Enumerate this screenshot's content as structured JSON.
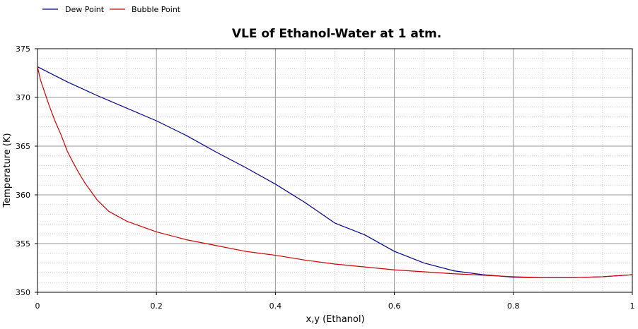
{
  "chart_data": {
    "type": "line",
    "title": "VLE of Ethanol-Water at 1 atm.",
    "xlabel": "x,y  (Ethanol)",
    "ylabel": "Temperature (K)",
    "xlim": [
      0,
      1
    ],
    "ylim": [
      350,
      375
    ],
    "x_ticks": [
      "0",
      "0.2",
      "0.4",
      "0.6",
      "0.8",
      "1"
    ],
    "y_ticks": [
      "350",
      "355",
      "360",
      "365",
      "370",
      "375"
    ],
    "x_tick_values": [
      0,
      0.2,
      0.4,
      0.6,
      0.8,
      1.0
    ],
    "y_tick_values": [
      350,
      355,
      360,
      365,
      370,
      375
    ],
    "x_minor_step": 0.05,
    "y_minor_step": 1,
    "grid": true,
    "legend_position": "top-left",
    "series": [
      {
        "name": "Dew Point",
        "color": "#00008b",
        "x": [
          0,
          0.05,
          0.1,
          0.15,
          0.2,
          0.25,
          0.3,
          0.35,
          0.4,
          0.45,
          0.5,
          0.55,
          0.6,
          0.65,
          0.7,
          0.75,
          0.8,
          0.85,
          0.9,
          0.95,
          1.0
        ],
        "y": [
          373.15,
          371.6,
          370.2,
          368.9,
          367.6,
          366.1,
          364.4,
          362.8,
          361.1,
          359.2,
          357.1,
          355.9,
          354.2,
          353.0,
          352.2,
          351.8,
          351.55,
          351.5,
          351.5,
          351.6,
          351.8
        ]
      },
      {
        "name": "Bubble Point",
        "color": "#cc0000",
        "x": [
          0,
          0.005,
          0.01,
          0.02,
          0.03,
          0.04,
          0.05,
          0.06,
          0.07,
          0.08,
          0.1,
          0.12,
          0.15,
          0.2,
          0.25,
          0.3,
          0.35,
          0.4,
          0.45,
          0.5,
          0.55,
          0.6,
          0.65,
          0.7,
          0.75,
          0.8,
          0.85,
          0.9,
          0.95,
          1.0
        ],
        "y": [
          373.15,
          371.8,
          370.9,
          369.1,
          367.5,
          366.1,
          364.5,
          363.3,
          362.2,
          361.2,
          359.5,
          358.3,
          357.3,
          356.2,
          355.4,
          354.8,
          354.2,
          353.8,
          353.3,
          352.9,
          352.6,
          352.3,
          352.1,
          351.9,
          351.75,
          351.6,
          351.5,
          351.5,
          351.6,
          351.8
        ]
      }
    ]
  }
}
